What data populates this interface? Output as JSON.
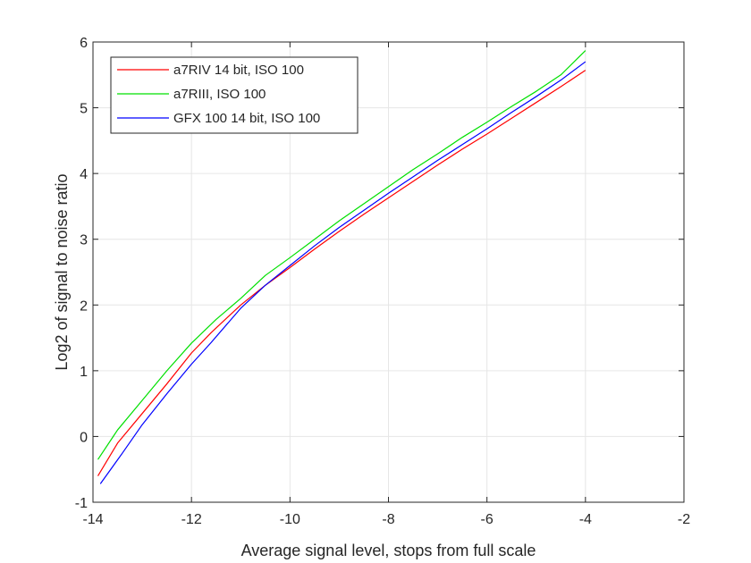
{
  "chart_data": {
    "type": "line",
    "title": "",
    "xlabel": "Average signal level, stops from full scale",
    "ylabel": "Log2 of signal to noise ratio",
    "xlim": [
      -14,
      -2
    ],
    "ylim": [
      -1,
      6
    ],
    "x_ticks": [
      "-14",
      "-12",
      "-10",
      "-8",
      "-6",
      "-4",
      "-2"
    ],
    "y_ticks": [
      "-1",
      "0",
      "1",
      "2",
      "3",
      "4",
      "5",
      "6"
    ],
    "grid": true,
    "legend_position": "top-left",
    "series": [
      {
        "name": "a7RIV 14 bit, ISO 100",
        "color": "#ff0000",
        "points": [
          [
            -13.9,
            -0.6
          ],
          [
            -13.5,
            -0.1
          ],
          [
            -13.0,
            0.35
          ],
          [
            -12.5,
            0.8
          ],
          [
            -12.0,
            1.27
          ],
          [
            -11.6,
            1.58
          ],
          [
            -11.0,
            2.0
          ],
          [
            -10.5,
            2.3
          ],
          [
            -10.0,
            2.57
          ],
          [
            -9.5,
            2.85
          ],
          [
            -9.0,
            3.12
          ],
          [
            -8.5,
            3.38
          ],
          [
            -8.0,
            3.63
          ],
          [
            -7.5,
            3.88
          ],
          [
            -7.0,
            4.13
          ],
          [
            -6.5,
            4.37
          ],
          [
            -6.0,
            4.6
          ],
          [
            -5.5,
            4.84
          ],
          [
            -5.0,
            5.08
          ],
          [
            -4.5,
            5.32
          ],
          [
            -4.0,
            5.57
          ]
        ]
      },
      {
        "name": "a7RIII, ISO 100",
        "color": "#00e000",
        "points": [
          [
            -13.9,
            -0.35
          ],
          [
            -13.5,
            0.1
          ],
          [
            -13.0,
            0.55
          ],
          [
            -12.5,
            1.0
          ],
          [
            -12.0,
            1.42
          ],
          [
            -11.5,
            1.78
          ],
          [
            -11.0,
            2.1
          ],
          [
            -10.5,
            2.45
          ],
          [
            -10.0,
            2.72
          ],
          [
            -9.5,
            3.0
          ],
          [
            -9.0,
            3.28
          ],
          [
            -8.5,
            3.54
          ],
          [
            -8.0,
            3.8
          ],
          [
            -7.5,
            4.06
          ],
          [
            -7.0,
            4.3
          ],
          [
            -6.5,
            4.55
          ],
          [
            -6.0,
            4.78
          ],
          [
            -5.5,
            5.02
          ],
          [
            -5.0,
            5.25
          ],
          [
            -4.5,
            5.5
          ],
          [
            -4.0,
            5.87
          ]
        ]
      },
      {
        "name": "GFX 100 14 bit, ISO 100",
        "color": "#0000ff",
        "points": [
          [
            -13.85,
            -0.72
          ],
          [
            -13.4,
            -0.25
          ],
          [
            -13.0,
            0.18
          ],
          [
            -12.5,
            0.65
          ],
          [
            -12.0,
            1.1
          ],
          [
            -11.6,
            1.43
          ],
          [
            -11.0,
            1.95
          ],
          [
            -10.5,
            2.3
          ],
          [
            -10.0,
            2.6
          ],
          [
            -9.5,
            2.9
          ],
          [
            -9.0,
            3.18
          ],
          [
            -8.5,
            3.44
          ],
          [
            -8.0,
            3.7
          ],
          [
            -7.5,
            3.95
          ],
          [
            -7.0,
            4.2
          ],
          [
            -6.5,
            4.44
          ],
          [
            -6.0,
            4.68
          ],
          [
            -5.5,
            4.93
          ],
          [
            -5.0,
            5.17
          ],
          [
            -4.5,
            5.42
          ],
          [
            -4.0,
            5.7
          ]
        ]
      }
    ]
  }
}
